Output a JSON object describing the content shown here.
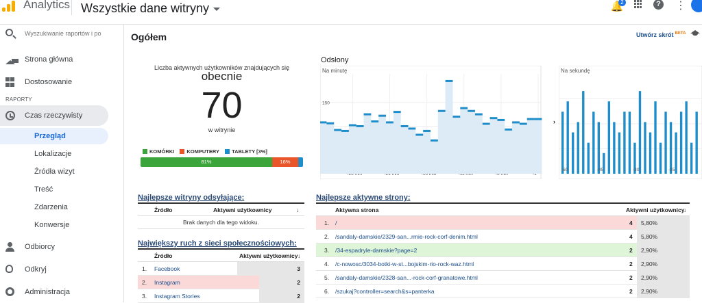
{
  "app": {
    "name": "Analytics",
    "property": "Wszystkie dane witryny",
    "notification_count": "2",
    "colors": {
      "accent": "#1a73e8",
      "logo": "#f9ab00"
    }
  },
  "sidebar": {
    "search_placeholder": "Wyszukiwanie raportów i pomocy",
    "items_top": [
      {
        "label": "Strona główna",
        "icon": "home-icon"
      },
      {
        "label": "Dostosowanie",
        "icon": "dashboard-icon"
      }
    ],
    "section_label": "RAPORTY",
    "realtime": {
      "label": "Czas rzeczywisty",
      "icon": "clock-icon"
    },
    "sub_items": [
      "Przegląd",
      "Lokalizacje",
      "Źródła wizyt",
      "Treść",
      "Zdarzenia",
      "Konwersje"
    ],
    "items_bottom": [
      {
        "label": "Odbiorcy",
        "icon": "person-icon"
      },
      {
        "label": "Odkryj",
        "icon": "bulb-icon"
      },
      {
        "label": "Administracja",
        "icon": "gear-icon"
      }
    ]
  },
  "main": {
    "title": "Ogółem",
    "shortcut_label": "Utwórz skrót",
    "shortcut_badge": "BETA",
    "active_users": {
      "caption": "Liczba aktywnych użytkowników znajdujących się",
      "now": "obecnie",
      "count": "70",
      "on_site": "w witrynie"
    },
    "devices": {
      "legend": [
        {
          "label": "KOMÓRKI",
          "color": "#3ba53b"
        },
        {
          "label": "KOMPUTERY",
          "color": "#e8562a"
        },
        {
          "label": "TABLETY [3%]",
          "color": "#1f8dc9"
        }
      ],
      "segments": [
        {
          "label": "81%",
          "value": 81,
          "color": "#3ba53b"
        },
        {
          "label": "16%",
          "value": 16,
          "color": "#e8562a"
        },
        {
          "label": "",
          "value": 3,
          "color": "#1f8dc9"
        }
      ]
    },
    "pageviews": {
      "title": "Odsłony",
      "per_minute_label": "Na minutę",
      "per_second_label": "Na sekundę",
      "min_label": "min"
    }
  },
  "chart_data": [
    {
      "type": "line",
      "title": "Na minutę",
      "x": [
        -30,
        -29,
        -28,
        -27,
        -26,
        -25,
        -24,
        -23,
        -22,
        -21,
        -20,
        -19,
        -18,
        -17,
        -16,
        -15,
        -14,
        -13,
        -12,
        -11,
        -10,
        -9,
        -8,
        -7,
        -6,
        -5,
        -4,
        -3,
        -2,
        -1
      ],
      "values": [
        108,
        106,
        92,
        90,
        102,
        100,
        125,
        110,
        122,
        108,
        130,
        100,
        95,
        82,
        90,
        70,
        132,
        195,
        120,
        138,
        132,
        125,
        105,
        117,
        113,
        93,
        108,
        105,
        115,
        115
      ],
      "x_ticks": [
        -26,
        -21,
        -16,
        -11,
        -6,
        -1
      ],
      "x_tick_labels": [
        "-26 min",
        "-21 min",
        "-16 min",
        "-11 min",
        "-6 min",
        "-1"
      ],
      "y_ticks": [
        50,
        100,
        150
      ],
      "ylim": [
        0,
        210
      ],
      "grid": true
    },
    {
      "type": "bar",
      "title": "Na sekundę",
      "values": [
        6,
        7,
        4,
        5,
        8,
        3,
        6,
        5,
        2,
        7,
        5,
        4,
        6,
        6,
        3,
        8,
        5,
        4,
        7,
        3,
        6,
        5,
        4,
        6,
        7,
        3,
        6
      ],
      "x_tick_labels": [
        "-60",
        "-45",
        "-30",
        "-15"
      ],
      "ylim": [
        0,
        9
      ],
      "grid": true
    }
  ],
  "referrers": {
    "title": "Najlepsze witryny odsyłające:",
    "col_source": "Źródło",
    "col_users": "Aktywni użytkownicy",
    "empty": "Brak danych dla tego widoku."
  },
  "social": {
    "title": "Największy ruch z sieci społecznościowych:",
    "col_source": "Źródło",
    "col_users": "Aktywni użytkownicy",
    "rows": [
      {
        "n": "1.",
        "source": "Facebook",
        "users": "3",
        "frac": 1.0,
        "hl": ""
      },
      {
        "n": "2.",
        "source": "Instagram",
        "users": "2",
        "frac": 0.67,
        "hl": "#fbd9d9"
      },
      {
        "n": "3.",
        "source": "Instagram Stories",
        "users": "2",
        "frac": 0.67,
        "hl": ""
      }
    ]
  },
  "pages": {
    "title": "Najlepsze aktywne strony:",
    "col_page": "Aktywna strona",
    "col_users": "Aktywni użytkownicy",
    "rows": [
      {
        "n": "1.",
        "page": "/",
        "users": "4",
        "pct": "5,80%",
        "hl": "#fbd9d9"
      },
      {
        "n": "2.",
        "page": "/sandaly-damskie/2329-san...rmie-rock-corf-denim.html",
        "users": "4",
        "pct": "5,80%",
        "hl": ""
      },
      {
        "n": "3.",
        "page": "/34-espadryle-damskie?page=2",
        "users": "2",
        "pct": "2,90%",
        "hl": "#dff5d8"
      },
      {
        "n": "4.",
        "page": "/c-nowosc/3034-botki-w-st...bojskim-rio-rock-waz.html",
        "users": "2",
        "pct": "2,90%",
        "hl": ""
      },
      {
        "n": "5.",
        "page": "/sandaly-damskie/2328-san...-rock-corf-granatowe.html",
        "users": "2",
        "pct": "2,90%",
        "hl": ""
      },
      {
        "n": "6.",
        "page": "/szukaj?controller=search&s=panterka",
        "users": "2",
        "pct": "2,90%",
        "hl": ""
      }
    ]
  }
}
